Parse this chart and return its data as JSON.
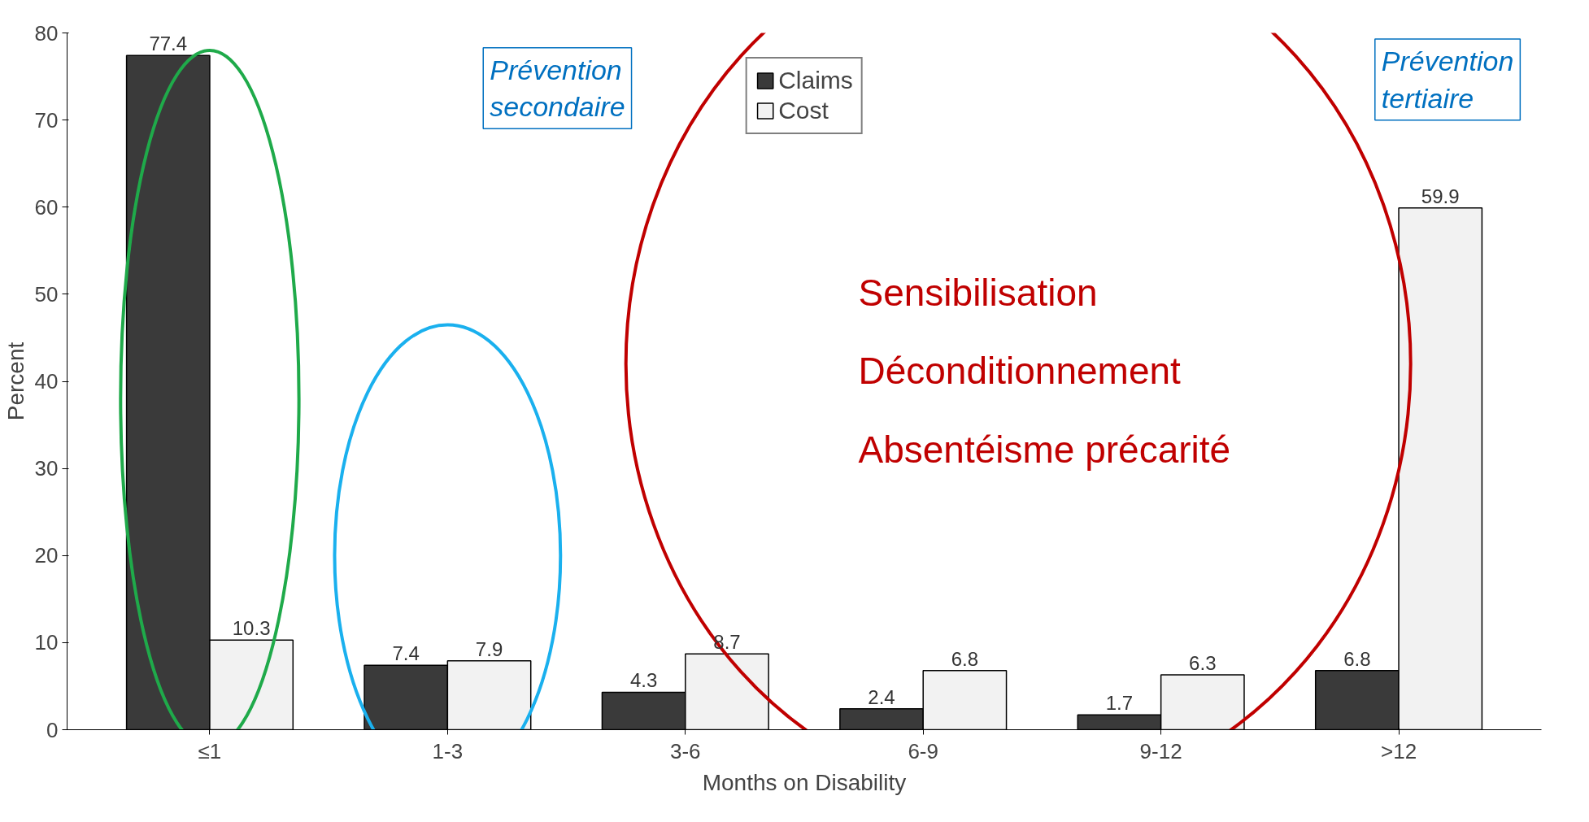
{
  "chart_data": {
    "type": "bar",
    "xlabel": "Months on Disability",
    "ylabel": "Percent",
    "categories": [
      "≤1",
      "1-3",
      "3-6",
      "6-9",
      "9-12",
      ">12"
    ],
    "series": [
      {
        "name": "Claims",
        "color": "#3a3a3a",
        "values": [
          77.4,
          7.4,
          4.3,
          2.4,
          1.7,
          6.8
        ]
      },
      {
        "name": "Cost",
        "color": "#f2f2f2",
        "values": [
          10.3,
          7.9,
          8.7,
          6.8,
          6.3,
          59.9
        ]
      }
    ],
    "ylim": [
      0,
      80
    ],
    "yticks": [
      0,
      10,
      20,
      30,
      40,
      50,
      60,
      70,
      80
    ],
    "data_labels": true,
    "grid": false,
    "legend": "top",
    "annotations": [
      "Prévention secondaire",
      "Prévention tertiaire",
      "Sensibilisation",
      "Déconditionnement",
      "Absentéisme précarité"
    ]
  }
}
